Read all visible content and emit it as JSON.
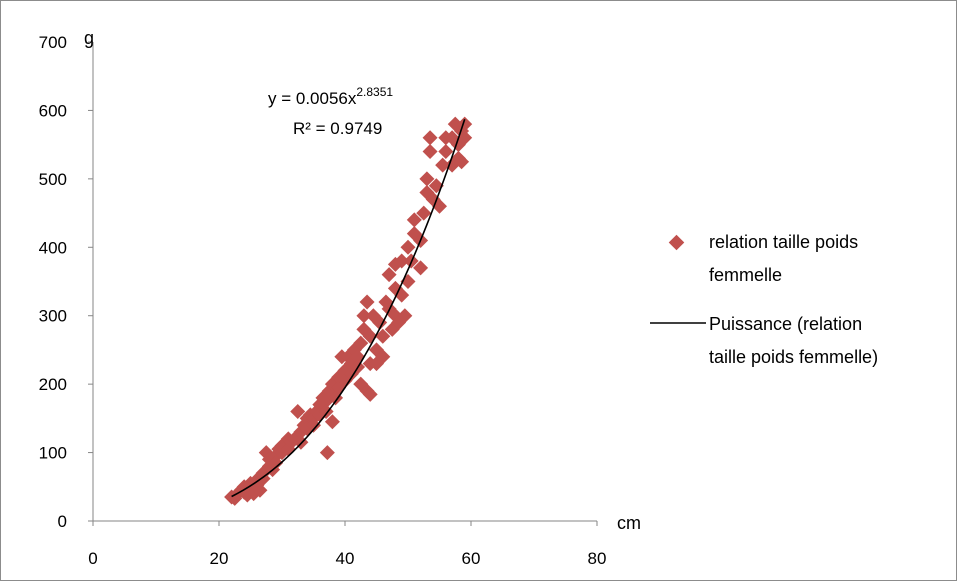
{
  "chart_data": {
    "type": "scatter",
    "xlabel": "cm",
    "ylabel": "g",
    "xlim": [
      0,
      80
    ],
    "ylim": [
      0,
      700
    ],
    "x_ticks": [
      "0",
      "20",
      "40",
      "60",
      "80"
    ],
    "y_ticks": [
      "0",
      "100",
      "200",
      "300",
      "400",
      "500",
      "600",
      "700"
    ],
    "grid": false,
    "legend_position": "right",
    "colors": {
      "points": "#c0504d",
      "trend": "#000000"
    },
    "series": [
      {
        "name": "relation taille poids femmelle",
        "kind": "scatter",
        "marker": "diamond",
        "points": [
          [
            22,
            35
          ],
          [
            22.5,
            33
          ],
          [
            23,
            40
          ],
          [
            23.5,
            45
          ],
          [
            24,
            50
          ],
          [
            24,
            42
          ],
          [
            24.5,
            38
          ],
          [
            25,
            48
          ],
          [
            25,
            55
          ],
          [
            25.5,
            40
          ],
          [
            26,
            52
          ],
          [
            26,
            60
          ],
          [
            26.5,
            45
          ],
          [
            27,
            70
          ],
          [
            27,
            62
          ],
          [
            27.5,
            100
          ],
          [
            28,
            80
          ],
          [
            28,
            90
          ],
          [
            28.5,
            75
          ],
          [
            29,
            95
          ],
          [
            29,
            85
          ],
          [
            29.5,
            105
          ],
          [
            30,
            100
          ],
          [
            30,
            110
          ],
          [
            31,
            120
          ],
          [
            31,
            105
          ],
          [
            31.5,
            115
          ],
          [
            32,
            120
          ],
          [
            32.5,
            160
          ],
          [
            33,
            130
          ],
          [
            33,
            115
          ],
          [
            33.5,
            140
          ],
          [
            34,
            150
          ],
          [
            34,
            135
          ],
          [
            34.5,
            155
          ],
          [
            35,
            150
          ],
          [
            35,
            140
          ],
          [
            35.5,
            160
          ],
          [
            36,
            170
          ],
          [
            36,
            155
          ],
          [
            36.5,
            180
          ],
          [
            37,
            175
          ],
          [
            37,
            160
          ],
          [
            37.2,
            100
          ],
          [
            37.5,
            190
          ],
          [
            38,
            145
          ],
          [
            38,
            200
          ],
          [
            38.5,
            180
          ],
          [
            39,
            210
          ],
          [
            39,
            195
          ],
          [
            39.5,
            240
          ],
          [
            40,
            220
          ],
          [
            40,
            205
          ],
          [
            40.5,
            240
          ],
          [
            41,
            230
          ],
          [
            41,
            215
          ],
          [
            41.5,
            250
          ],
          [
            42,
            240
          ],
          [
            42,
            225
          ],
          [
            42.5,
            200
          ],
          [
            42.5,
            260
          ],
          [
            43,
            300
          ],
          [
            43,
            280
          ],
          [
            43.5,
            320
          ],
          [
            43.5,
            190
          ],
          [
            44,
            270
          ],
          [
            44,
            230
          ],
          [
            44,
            185
          ],
          [
            44.5,
            300
          ],
          [
            45,
            250
          ],
          [
            45,
            230
          ],
          [
            45.5,
            290
          ],
          [
            46,
            270
          ],
          [
            46,
            240
          ],
          [
            46.5,
            320
          ],
          [
            47,
            310
          ],
          [
            47,
            360
          ],
          [
            47.5,
            280
          ],
          [
            48,
            340
          ],
          [
            48,
            300
          ],
          [
            48,
            375
          ],
          [
            48.5,
            290
          ],
          [
            49,
            380
          ],
          [
            49,
            330
          ],
          [
            49.5,
            300
          ],
          [
            50,
            400
          ],
          [
            50,
            350
          ],
          [
            50.5,
            380
          ],
          [
            51,
            440
          ],
          [
            51,
            420
          ],
          [
            52,
            370
          ],
          [
            52,
            410
          ],
          [
            52.5,
            450
          ],
          [
            53,
            480
          ],
          [
            53,
            500
          ],
          [
            53.5,
            560
          ],
          [
            53.5,
            540
          ],
          [
            54,
            470
          ],
          [
            54.5,
            490
          ],
          [
            55,
            460
          ],
          [
            55.5,
            520
          ],
          [
            56,
            540
          ],
          [
            56,
            560
          ],
          [
            57,
            560
          ],
          [
            57,
            520
          ],
          [
            57.5,
            580
          ],
          [
            58,
            530
          ],
          [
            58,
            550
          ],
          [
            58.5,
            570
          ],
          [
            59,
            580
          ],
          [
            59,
            560
          ],
          [
            58.5,
            525
          ]
        ]
      },
      {
        "name": "Puissance (relation taille poids femmelle)",
        "kind": "trendline",
        "model": "power",
        "coefficient": 0.0056,
        "exponent": 2.8351,
        "x_range": [
          22,
          59
        ]
      }
    ],
    "annotation": {
      "equation_prefix": "y = 0.0056x",
      "equation_exponent": "2.8351",
      "r_squared": "R² = 0.9749"
    },
    "legend": {
      "line1_a": "relation taille poids",
      "line1_b": "femmelle",
      "line2_a": "Puissance (relation",
      "line2_b": "taille poids femmelle)"
    }
  }
}
